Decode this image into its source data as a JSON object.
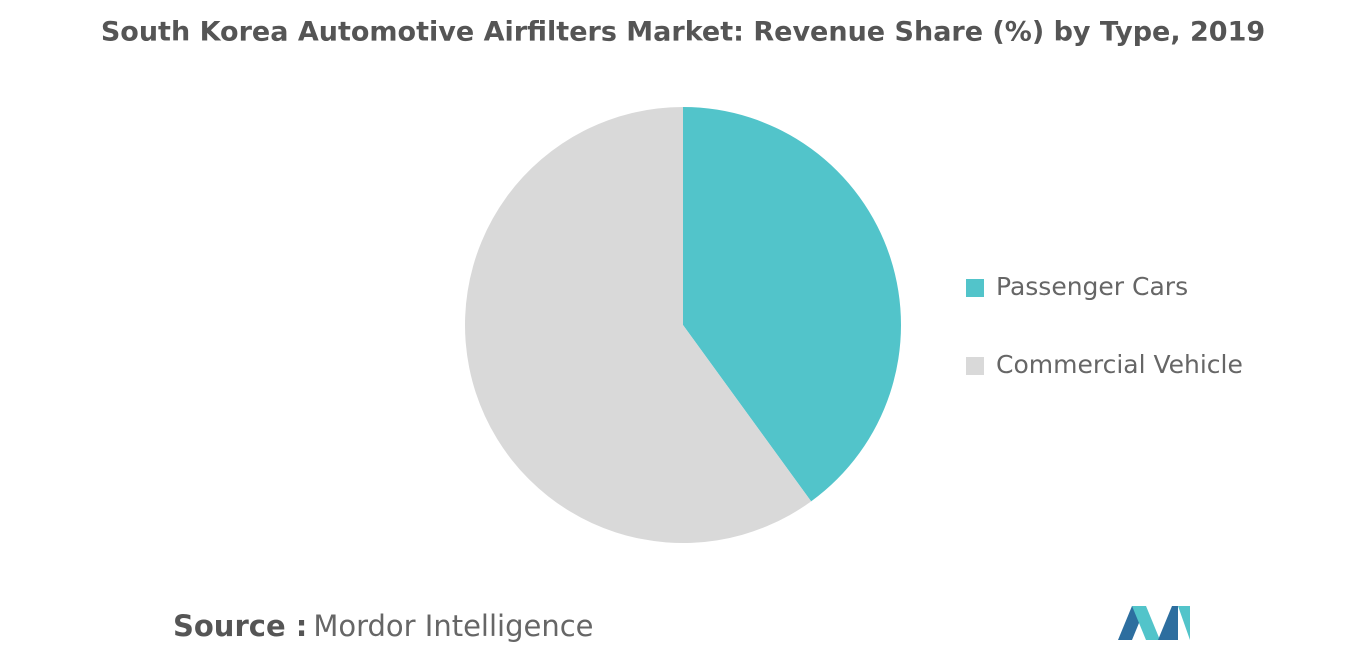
{
  "chart_data": {
    "type": "pie",
    "title": "South Korea Automotive Airfilters Market: Revenue Share (%) by Type, 2019",
    "categories": [
      "Passenger Cars",
      "Commercial Vehicle"
    ],
    "values": [
      40,
      60
    ],
    "colors": [
      "#52c4ca",
      "#d9d9d9"
    ],
    "legend": "right",
    "source_label": "Source :",
    "source": "Mordor Intelligence"
  }
}
